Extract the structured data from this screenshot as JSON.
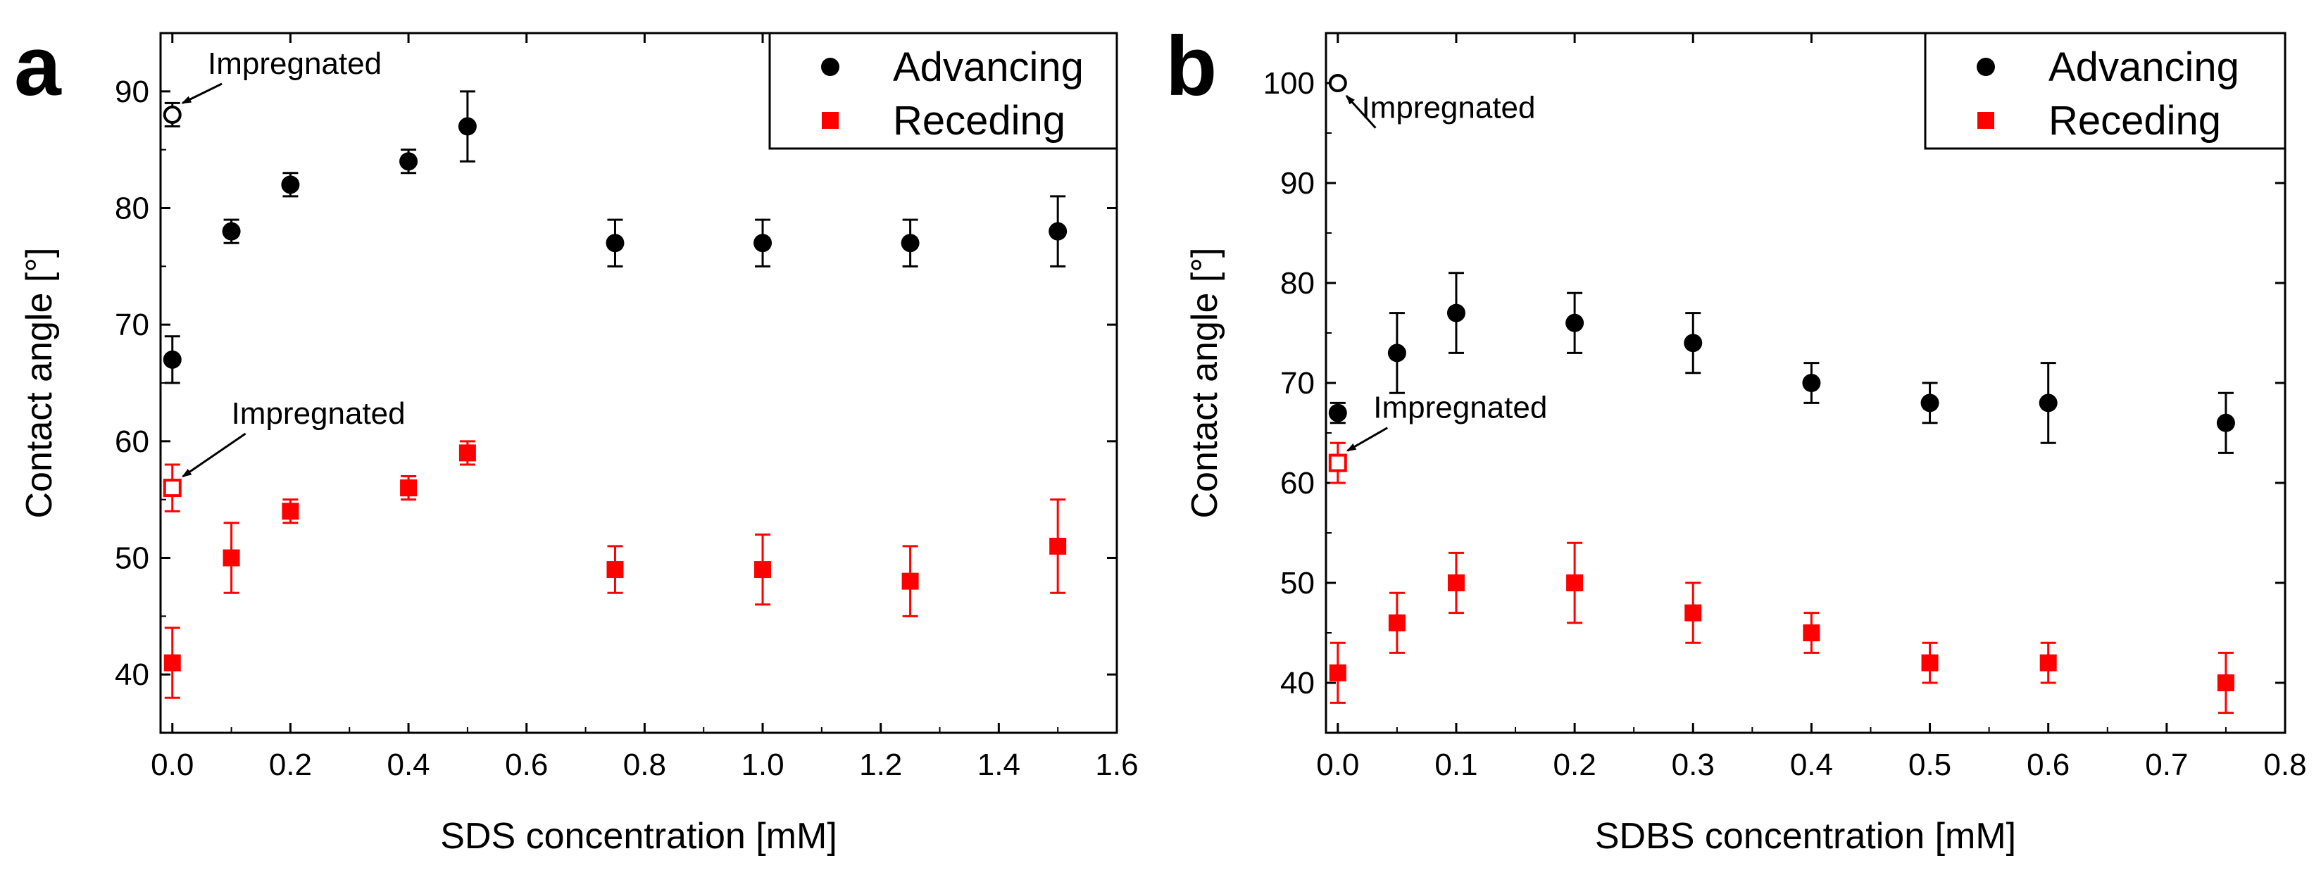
{
  "colors": {
    "advancing": "#000000",
    "receding": "#ff0000",
    "axis": "#000000",
    "background": "#ffffff"
  },
  "chart_data": [
    {
      "type": "scatter",
      "panel_label": "a",
      "xlabel": "SDS concentration [mM]",
      "ylabel": "Contact angle [°]",
      "xlim": [
        -0.02,
        1.6
      ],
      "ylim": [
        35,
        95
      ],
      "xticks": [
        0.0,
        0.2,
        0.4,
        0.6,
        0.8,
        1.0,
        1.2,
        1.4,
        1.6
      ],
      "xtick_labels": [
        "0.0",
        "0.2",
        "0.4",
        "0.6",
        "0.8",
        "1.0",
        "1.2",
        "1.4",
        "1.6"
      ],
      "yticks": [
        40,
        50,
        60,
        70,
        80,
        90
      ],
      "ytick_labels": [
        "40",
        "50",
        "60",
        "70",
        "80",
        "90"
      ],
      "legend": {
        "position": "top-right",
        "entries": [
          "Advancing",
          "Receding"
        ]
      },
      "series": [
        {
          "name": "Advancing",
          "marker": "circle",
          "color": "#000000",
          "x": [
            0.0,
            0.1,
            0.2,
            0.4,
            0.5,
            0.75,
            1.0,
            1.25,
            1.5
          ],
          "y": [
            67,
            78,
            82,
            84,
            87,
            77,
            77,
            77,
            78
          ],
          "err": [
            2,
            1,
            1,
            1,
            3,
            2,
            2,
            2,
            3
          ]
        },
        {
          "name": "Receding",
          "marker": "square",
          "color": "#ff0000",
          "x": [
            0.0,
            0.1,
            0.2,
            0.4,
            0.5,
            0.75,
            1.0,
            1.25,
            1.5
          ],
          "y": [
            41,
            50,
            54,
            56,
            59,
            49,
            49,
            48,
            51
          ],
          "err": [
            3,
            3,
            1,
            1,
            1,
            2,
            3,
            3,
            4
          ]
        }
      ],
      "impregnated_points": [
        {
          "series": "Advancing",
          "x": 0.0,
          "y": 88,
          "err": 1,
          "marker": "open-circle",
          "color": "#000000"
        },
        {
          "series": "Receding",
          "x": 0.0,
          "y": 56,
          "err": 2,
          "marker": "open-square",
          "color": "#ff0000"
        }
      ],
      "annotations": [
        {
          "text": "Impregnated",
          "target": "Advancing",
          "text_anchor_x": 0.06,
          "text_anchor_y": 91.5
        },
        {
          "text": "Impregnated",
          "target": "Receding",
          "text_anchor_x": 0.1,
          "text_anchor_y": 61.5
        }
      ]
    },
    {
      "type": "scatter",
      "panel_label": "b",
      "xlabel": "SDBS concentration [mM]",
      "ylabel": "Contact angle [°]",
      "xlim": [
        -0.01,
        0.8
      ],
      "ylim": [
        35,
        105
      ],
      "xticks": [
        0.0,
        0.1,
        0.2,
        0.3,
        0.4,
        0.5,
        0.6,
        0.7,
        0.8
      ],
      "xtick_labels": [
        "0.0",
        "0.1",
        "0.2",
        "0.3",
        "0.4",
        "0.5",
        "0.6",
        "0.7",
        "0.8"
      ],
      "yticks": [
        40,
        50,
        60,
        70,
        80,
        90,
        100
      ],
      "ytick_labels": [
        "40",
        "50",
        "60",
        "70",
        "80",
        "90",
        "100"
      ],
      "legend": {
        "position": "top-right",
        "entries": [
          "Advancing",
          "Receding"
        ]
      },
      "series": [
        {
          "name": "Advancing",
          "marker": "circle",
          "color": "#000000",
          "x": [
            0.0,
            0.05,
            0.1,
            0.2,
            0.3,
            0.4,
            0.5,
            0.6,
            0.75
          ],
          "y": [
            67,
            73,
            77,
            76,
            74,
            70,
            68,
            68,
            66
          ],
          "err": [
            1,
            4,
            4,
            3,
            3,
            2,
            2,
            4,
            3
          ]
        },
        {
          "name": "Receding",
          "marker": "square",
          "color": "#ff0000",
          "x": [
            0.0,
            0.05,
            0.1,
            0.2,
            0.3,
            0.4,
            0.5,
            0.6,
            0.75
          ],
          "y": [
            41,
            46,
            50,
            50,
            47,
            45,
            42,
            42,
            40
          ],
          "err": [
            3,
            3,
            3,
            4,
            3,
            2,
            2,
            2,
            3
          ]
        }
      ],
      "impregnated_points": [
        {
          "series": "Advancing",
          "x": 0.0,
          "y": 100,
          "err": 0,
          "marker": "open-circle",
          "color": "#000000"
        },
        {
          "series": "Receding",
          "x": 0.0,
          "y": 62,
          "err": 2,
          "marker": "open-square",
          "color": "#ff0000"
        }
      ],
      "annotations": [
        {
          "text": "Impregnated",
          "target": "Advancing",
          "text_anchor_x": 0.02,
          "text_anchor_y": 96.5
        },
        {
          "text": "Impregnated",
          "target": "Receding",
          "text_anchor_x": 0.03,
          "text_anchor_y": 66.5
        }
      ]
    }
  ]
}
